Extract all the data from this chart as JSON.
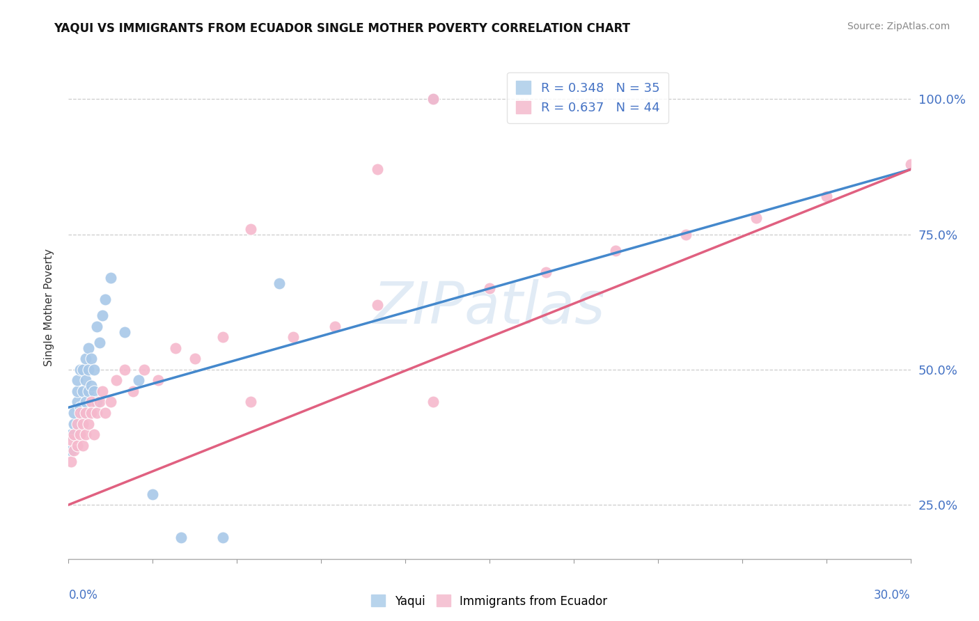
{
  "title": "YAQUI VS IMMIGRANTS FROM ECUADOR SINGLE MOTHER POVERTY CORRELATION CHART",
  "source": "Source: ZipAtlas.com",
  "ylabel": "Single Mother Poverty",
  "ytick_values": [
    0.25,
    0.5,
    0.75,
    1.0
  ],
  "xmin": 0.0,
  "xmax": 0.3,
  "ymin": 0.15,
  "ymax": 1.08,
  "blue_color": "#a8c8e8",
  "pink_color": "#f5b8cc",
  "blue_line_color": "#4488cc",
  "pink_line_color": "#e06080",
  "watermark": "ZIPatlas",
  "label_color": "#4472c4",
  "yaqui_x": [
    0.001,
    0.001,
    0.002,
    0.002,
    0.003,
    0.003,
    0.003,
    0.004,
    0.004,
    0.005,
    0.005,
    0.005,
    0.006,
    0.006,
    0.006,
    0.007,
    0.007,
    0.007,
    0.008,
    0.008,
    0.009,
    0.009,
    0.01,
    0.01,
    0.011,
    0.012,
    0.013,
    0.015,
    0.02,
    0.025,
    0.03,
    0.04,
    0.055,
    0.075,
    0.13
  ],
  "yaqui_y": [
    0.35,
    0.38,
    0.4,
    0.42,
    0.44,
    0.46,
    0.48,
    0.43,
    0.5,
    0.42,
    0.46,
    0.5,
    0.44,
    0.48,
    0.52,
    0.46,
    0.5,
    0.54,
    0.47,
    0.52,
    0.46,
    0.5,
    0.44,
    0.58,
    0.55,
    0.6,
    0.63,
    0.67,
    0.57,
    0.48,
    0.27,
    0.19,
    0.19,
    0.66,
    1.0
  ],
  "ecuador_x": [
    0.001,
    0.001,
    0.002,
    0.002,
    0.003,
    0.003,
    0.004,
    0.004,
    0.005,
    0.005,
    0.006,
    0.006,
    0.007,
    0.008,
    0.008,
    0.009,
    0.01,
    0.011,
    0.012,
    0.013,
    0.015,
    0.017,
    0.02,
    0.023,
    0.027,
    0.032,
    0.038,
    0.045,
    0.055,
    0.065,
    0.08,
    0.095,
    0.11,
    0.13,
    0.15,
    0.17,
    0.195,
    0.22,
    0.245,
    0.27,
    0.11,
    0.065,
    0.13,
    0.3
  ],
  "ecuador_y": [
    0.33,
    0.37,
    0.35,
    0.38,
    0.36,
    0.4,
    0.38,
    0.42,
    0.36,
    0.4,
    0.38,
    0.42,
    0.4,
    0.44,
    0.42,
    0.38,
    0.42,
    0.44,
    0.46,
    0.42,
    0.44,
    0.48,
    0.5,
    0.46,
    0.5,
    0.48,
    0.54,
    0.52,
    0.56,
    0.44,
    0.56,
    0.58,
    0.62,
    0.44,
    0.65,
    0.68,
    0.72,
    0.75,
    0.78,
    0.82,
    0.87,
    0.76,
    1.0,
    0.88
  ],
  "blue_line_x0": 0.0,
  "blue_line_y0": 0.43,
  "blue_line_x1": 0.3,
  "blue_line_y1": 0.87,
  "pink_line_x0": 0.0,
  "pink_line_y0": 0.25,
  "pink_line_x1": 0.3,
  "pink_line_y1": 0.87
}
